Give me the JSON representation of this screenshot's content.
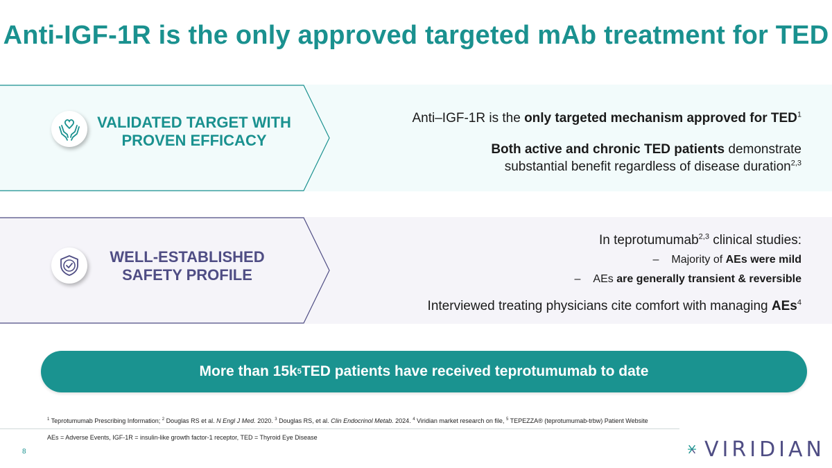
{
  "title": "Anti-IGF-1R is the only approved targeted mAb treatment for TED",
  "colors": {
    "teal": "#1a918f",
    "purple": "#4f4d84",
    "band_teal": "#f2fbfb",
    "band_purple": "#f5f4f9"
  },
  "section1": {
    "icon": "hands-heart-icon",
    "label_line1": "VALIDATED TARGET WITH",
    "label_line2": "PROVEN EFFICACY",
    "line1_pre": "Anti–IGF-1R is the ",
    "line1_bold": "only targeted mechanism approved for TED",
    "line1_sup": "1",
    "line2_bold": "Both active and chronic TED patients",
    "line2_rest": " demonstrate",
    "line3": "substantial benefit regardless of disease duration",
    "line3_sup": "2,3"
  },
  "section2": {
    "icon": "shield-check-icon",
    "label_line1": "WELL-ESTABLISHED",
    "label_line2": "SAFETY PROFILE",
    "intro_pre": "In teprotumumab",
    "intro_sup": "2,3",
    "intro_post": " clinical studies:",
    "bullet1_dash": "–",
    "bullet1_pre": "Majority of ",
    "bullet1_bold": "AEs were mild",
    "bullet2_dash": "–",
    "bullet2_pre": "AEs ",
    "bullet2_bold": "are generally transient & reversible",
    "closing_pre": "Interviewed treating physicians cite comfort with managing ",
    "closing_bold": "AEs",
    "closing_sup": "4"
  },
  "banner": {
    "pre": "More than 15k",
    "sup": "5",
    "post": " TED patients have received teprotumumab to date"
  },
  "footnotes": {
    "ref1_num": "1",
    "ref1": " Teprotumumab Prescribing Information; ",
    "ref2_num": "2",
    "ref2_a": " Douglas RS et al. ",
    "ref2_journal": "N Engl J Med.",
    "ref2_b": " 2020. ",
    "ref3_num": "3",
    "ref3_a": " Douglas RS, et al. ",
    "ref3_journal": "Clin Endocrinol Metab.",
    "ref3_b": " 2024. ",
    "ref4_num": "4",
    "ref4": " Viridian market research on file,  ",
    "ref5_num": "5",
    "ref5": " TEPEZZA® (teprotumumab-trbw) Patient Website",
    "abbreviations": "AEs = Adverse Events, IGF-1R = insulin-like growth factor-1 receptor, TED = Thyroid Eye Disease"
  },
  "page_number": "8",
  "logo_text": "VIRIDIAN"
}
